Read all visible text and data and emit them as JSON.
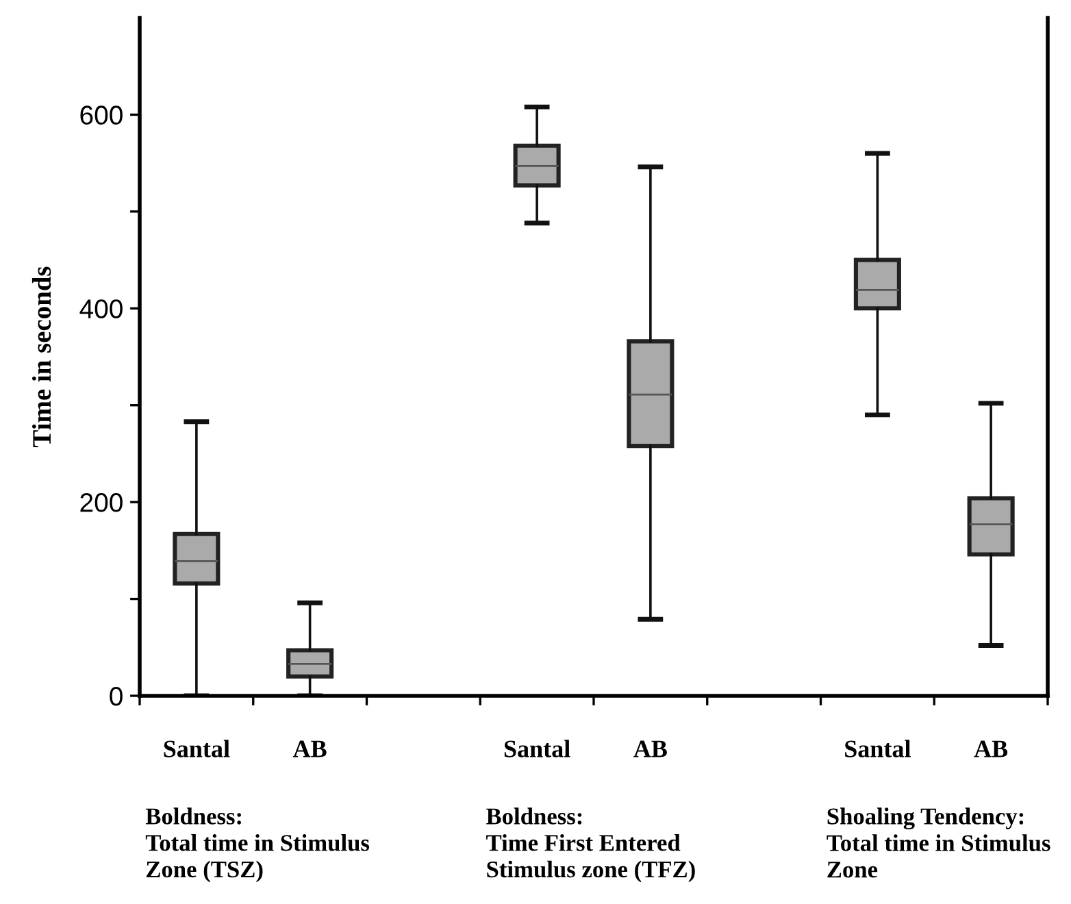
{
  "chart_data": {
    "type": "box",
    "ylabel": "Time in seconds",
    "categories": [
      "Santal",
      "AB",
      null,
      "Santal",
      "AB",
      null,
      "Santal",
      "AB"
    ],
    "boxes": [
      {
        "low": 0,
        "q1": 116,
        "median": 139,
        "q3": 167,
        "high": 283
      },
      {
        "low": 0,
        "q1": 20,
        "median": 33,
        "q3": 47,
        "high": 96
      },
      null,
      {
        "low": 488,
        "q1": 527,
        "median": 547,
        "q3": 568,
        "high": 608
      },
      {
        "low": 79,
        "q1": 258,
        "median": 311,
        "q3": 366,
        "high": 546
      },
      null,
      {
        "low": 290,
        "q1": 400,
        "median": 419,
        "q3": 450,
        "high": 560
      },
      {
        "low": 52,
        "q1": 146,
        "median": 177,
        "q3": 204,
        "high": 302
      }
    ],
    "color": "#aaaaaa",
    "ylim": [
      0,
      700
    ],
    "yticks": [
      0,
      {
        "value": 100,
        "label": null
      },
      200,
      {
        "value": 300,
        "label": null
      },
      400,
      {
        "value": 500,
        "label": null
      },
      600
    ],
    "grid": false,
    "legend": false,
    "annotations": [
      "Boldness:\nTotal time in Stimulus\nZone (TSZ)",
      "Boldness:\nTime First Entered\nStimulus zone (TFZ)",
      "Shoaling Tendency:\nTotal time in Stimulus\nZone"
    ]
  }
}
